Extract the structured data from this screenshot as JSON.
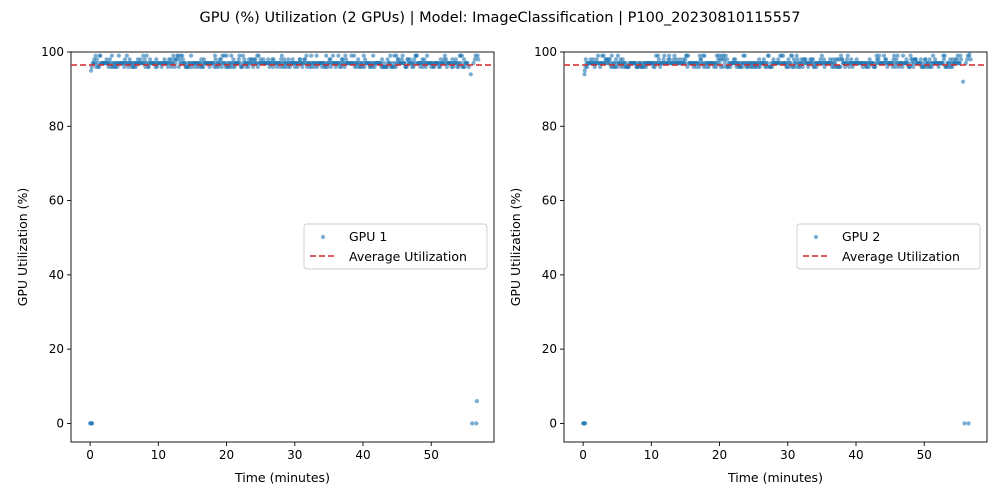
{
  "figure": {
    "title": "GPU (%) Utilization (2 GPUs) | Model: ImageClassification | P100_20230810115557"
  },
  "colors": {
    "point": "#1f77b4",
    "average_line": "#d62728",
    "axis": "#000000"
  },
  "chart_data": [
    {
      "type": "scatter",
      "title": "",
      "xlabel": "Time (minutes)",
      "ylabel": "GPU Utilization (%)",
      "xlim": [
        -2.8,
        59.2
      ],
      "ylim": [
        -5,
        100
      ],
      "xticks": [
        0,
        10,
        20,
        30,
        40,
        50
      ],
      "yticks": [
        0,
        20,
        40,
        60,
        80,
        100
      ],
      "legend_position": "center-right",
      "series": [
        {
          "name": "GPU 1",
          "kind": "scatter",
          "start": [
            [
              0,
              0
            ],
            [
              0.1,
              0
            ],
            [
              0.2,
              0
            ],
            [
              0.3,
              0
            ],
            [
              0.15,
              95
            ],
            [
              0.25,
              96
            ],
            [
              0.4,
              97
            ]
          ],
          "end": [
            [
              55.5,
              96
            ],
            [
              55.8,
              94
            ],
            [
              56.0,
              0
            ],
            [
              56.2,
              97
            ],
            [
              56.4,
              98
            ],
            [
              56.5,
              99
            ],
            [
              56.6,
              0
            ],
            [
              56.7,
              6
            ],
            [
              56.8,
              99
            ],
            [
              56.9,
              98
            ]
          ],
          "range": [
            0.5,
            55.4
          ],
          "step": 0.1,
          "levels": [
            96,
            97,
            98,
            99
          ],
          "level_counts": [
            110,
            305,
            70,
            40
          ]
        },
        {
          "name": "Average Utilization",
          "kind": "hline",
          "value": 96.5
        }
      ]
    },
    {
      "type": "scatter",
      "title": "",
      "xlabel": "Time (minutes)",
      "ylabel": "GPU Utilization (%)",
      "xlim": [
        -2.8,
        59.2
      ],
      "ylim": [
        -5,
        100
      ],
      "xticks": [
        0,
        10,
        20,
        30,
        40,
        50
      ],
      "yticks": [
        0,
        20,
        40,
        60,
        80,
        100
      ],
      "legend_position": "center-right",
      "series": [
        {
          "name": "GPU 2",
          "kind": "scatter",
          "start": [
            [
              0,
              0
            ],
            [
              0.1,
              0
            ],
            [
              0.2,
              0
            ],
            [
              0.3,
              0
            ],
            [
              0.2,
              94
            ],
            [
              0.25,
              95
            ],
            [
              0.35,
              96
            ],
            [
              0.4,
              98
            ]
          ],
          "end": [
            [
              55.7,
              92
            ],
            [
              55.9,
              0
            ],
            [
              56.1,
              97
            ],
            [
              56.3,
              98
            ],
            [
              56.4,
              99
            ],
            [
              56.5,
              0
            ],
            [
              56.6,
              99
            ],
            [
              56.7,
              100
            ],
            [
              56.8,
              98
            ]
          ],
          "range": [
            0.5,
            55.5
          ],
          "step": 0.1,
          "levels": [
            96,
            97,
            98,
            99
          ],
          "level_counts": [
            115,
            300,
            72,
            38
          ]
        },
        {
          "name": "Average Utilization",
          "kind": "hline",
          "value": 96.5
        }
      ]
    }
  ]
}
